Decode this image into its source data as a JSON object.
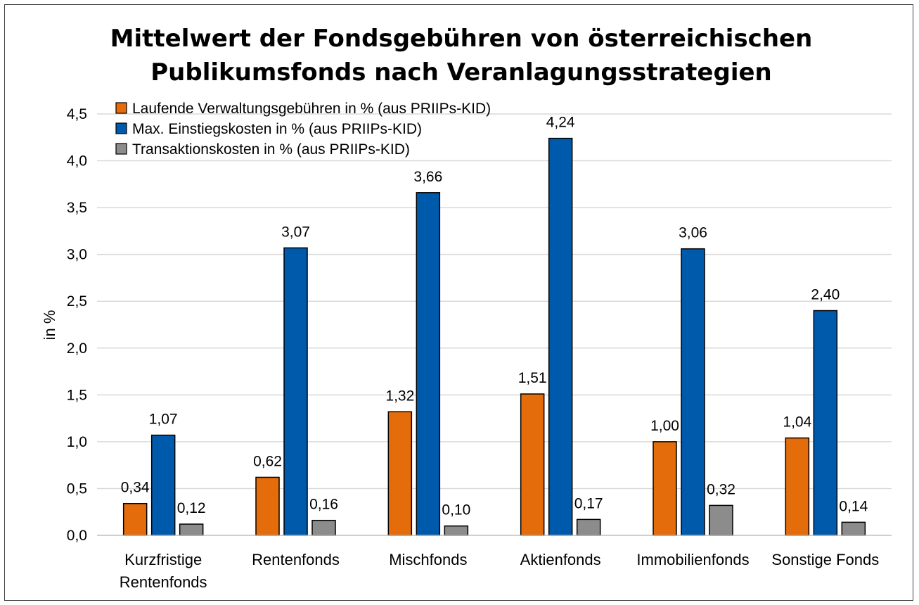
{
  "chart_data": {
    "type": "bar",
    "title_lines": [
      "Mittelwert der Fondsgebühren von österreichischen",
      "Publikumsfonds nach Veranlagungsstrategien"
    ],
    "ylabel": "in %",
    "ylim": [
      0,
      4.5
    ],
    "yticks": [
      "0,0",
      "0,5",
      "1,0",
      "1,5",
      "2,0",
      "2,5",
      "3,0",
      "3,5",
      "4,0",
      "4,5"
    ],
    "ytick_values": [
      0,
      0.5,
      1.0,
      1.5,
      2.0,
      2.5,
      3.0,
      3.5,
      4.0,
      4.5
    ],
    "grid": true,
    "legend_position": "top-left",
    "categories": [
      [
        "Kurzfristige",
        "Rentenfonds"
      ],
      [
        "Rentenfonds"
      ],
      [
        "Mischfonds"
      ],
      [
        "Aktienfonds"
      ],
      [
        "Immobilienfonds"
      ],
      [
        "Sonstige Fonds"
      ]
    ],
    "series": [
      {
        "name": "Laufende Verwaltungsgebühren in % (aus PRIIPs-KID)",
        "color": "#E46C0A",
        "values": [
          0.34,
          0.62,
          1.32,
          1.51,
          1.0,
          1.04
        ],
        "labels": [
          "0,34",
          "0,62",
          "1,32",
          "1,51",
          "1,00",
          "1,04"
        ]
      },
      {
        "name": "Max. Einstiegskosten in % (aus PRIIPs-KID)",
        "color": "#005AAC",
        "values": [
          1.07,
          3.07,
          3.66,
          4.24,
          3.06,
          2.4
        ],
        "labels": [
          "1,07",
          "3,07",
          "3,66",
          "4,24",
          "3,06",
          "2,40"
        ]
      },
      {
        "name": "Transaktionskosten in % (aus PRIIPs-KID)",
        "color": "#8C8C8C",
        "values": [
          0.12,
          0.16,
          0.1,
          0.17,
          0.32,
          0.14
        ],
        "labels": [
          "0,12",
          "0,16",
          "0,10",
          "0,17",
          "0,32",
          "0,14"
        ]
      }
    ]
  }
}
